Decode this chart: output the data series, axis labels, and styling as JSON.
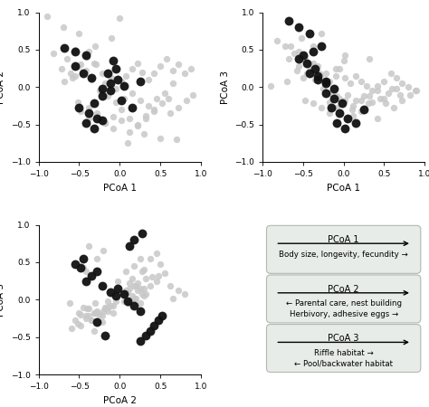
{
  "background_color": "#ffffff",
  "scatter_gray_color": "#c8c8c8",
  "scatter_black_color": "#111111",
  "gray_alpha": 0.85,
  "gray_size": 28,
  "black_size": 50,
  "axis_label_fontsize": 7.5,
  "tick_fontsize": 6.5,
  "legend_box_facecolor": "#e8ece8",
  "legend_box_edgecolor": "#b0b8b0",
  "plots": [
    {
      "xlabel": "PCoA 1",
      "ylabel": "PCoA 2",
      "xlim": [
        -1.0,
        1.0
      ],
      "ylim": [
        -1.0,
        1.0
      ]
    },
    {
      "xlabel": "PCoA 1",
      "ylabel": "PCoA 3",
      "xlim": [
        -1.0,
        1.0
      ],
      "ylim": [
        -1.0,
        1.0
      ]
    },
    {
      "xlabel": "PCoA 2",
      "ylabel": "PCoA 3",
      "xlim": [
        -1.0,
        1.0
      ],
      "ylim": [
        -1.0,
        1.0
      ]
    }
  ],
  "legend_panels": [
    {
      "title": "PCoA 1",
      "lines": [
        "Body size, longevity, fecundity →"
      ]
    },
    {
      "title": "PCoA 2",
      "lines": [
        "← Parental care, nest building",
        "Herbivory, adhesive eggs →"
      ]
    },
    {
      "title": "PCoA 3",
      "lines": [
        "Riffle habitat →",
        "← Pool/backwater habitat"
      ]
    }
  ],
  "gray_x1": [
    -0.82,
    -0.65,
    -0.55,
    -0.48,
    -0.38,
    -0.72,
    -0.61,
    -0.5,
    -0.41,
    -0.58,
    -0.45,
    -0.32,
    -0.68,
    -0.55,
    -0.42,
    -0.29,
    -0.35,
    -0.22,
    -0.18,
    -0.1,
    -0.05,
    0.02,
    0.08,
    0.15,
    0.22,
    0.28,
    0.35,
    0.42,
    0.5,
    0.58,
    0.65,
    0.72,
    0.8,
    0.88,
    -0.25,
    -0.15,
    -0.05,
    0.05,
    0.15,
    0.25,
    0.35,
    0.45,
    0.55,
    0.65,
    -0.48,
    -0.38,
    -0.28,
    -0.18,
    -0.08,
    0.02,
    0.12,
    0.22,
    0.32,
    0.42,
    0.52,
    0.62,
    0.72,
    0.82,
    -0.52,
    -0.38,
    -0.28,
    -0.18,
    -0.08,
    0.02,
    0.12,
    0.22,
    0.32,
    0.42,
    0.0,
    0.1,
    -0.1,
    0.3,
    -0.3,
    0.5,
    -0.5,
    0.7,
    -0.7,
    0.9,
    -0.9,
    0.6
  ],
  "gray_y1": [
    0.45,
    0.38,
    0.5,
    0.3,
    0.48,
    0.25,
    0.18,
    0.28,
    0.4,
    0.12,
    0.2,
    0.32,
    0.08,
    0.15,
    0.22,
    0.3,
    0.1,
    0.18,
    0.05,
    0.12,
    -0.02,
    0.08,
    0.15,
    0.25,
    0.32,
    0.2,
    0.1,
    0.18,
    0.28,
    0.38,
    0.22,
    0.3,
    0.18,
    0.25,
    -0.05,
    -0.12,
    -0.2,
    -0.15,
    -0.08,
    -0.18,
    -0.25,
    -0.15,
    -0.08,
    0.05,
    -0.32,
    -0.42,
    -0.35,
    -0.48,
    -0.4,
    -0.3,
    -0.42,
    -0.5,
    -0.38,
    -0.3,
    -0.22,
    -0.35,
    -0.28,
    -0.18,
    -0.2,
    -0.28,
    -0.38,
    -0.48,
    -0.55,
    -0.45,
    -0.6,
    -0.52,
    -0.42,
    -0.32,
    0.92,
    -0.75,
    0.65,
    -0.62,
    0.55,
    -0.68,
    0.72,
    -0.7,
    0.8,
    -0.1,
    0.95,
    -0.15
  ],
  "black_x1": [
    -0.68,
    -0.55,
    -0.42,
    -0.55,
    -0.45,
    -0.35,
    -0.5,
    -0.38,
    -0.28,
    -0.42,
    -0.32,
    -0.22,
    -0.32,
    -0.22,
    -0.12,
    -0.22,
    -0.12,
    -0.02,
    -0.15,
    -0.05,
    0.05,
    -0.08,
    0.02,
    0.15,
    0.25
  ],
  "black_y1": [
    0.52,
    0.48,
    0.42,
    0.28,
    0.18,
    0.12,
    -0.28,
    -0.35,
    -0.42,
    -0.48,
    -0.55,
    -0.45,
    -0.22,
    -0.12,
    -0.05,
    -0.02,
    0.05,
    0.1,
    0.18,
    0.25,
    0.02,
    0.35,
    -0.18,
    -0.28,
    0.08
  ],
  "gray_x2": [
    -0.82,
    -0.65,
    -0.55,
    -0.48,
    -0.38,
    -0.72,
    -0.61,
    -0.5,
    -0.41,
    -0.58,
    -0.45,
    -0.32,
    -0.68,
    -0.55,
    -0.42,
    -0.29,
    -0.35,
    -0.22,
    -0.18,
    -0.1,
    -0.05,
    0.02,
    0.08,
    0.15,
    0.22,
    0.28,
    0.35,
    0.42,
    0.5,
    0.58,
    0.65,
    0.72,
    0.8,
    0.88,
    -0.25,
    -0.15,
    -0.05,
    0.05,
    0.15,
    0.25,
    0.35,
    0.45,
    0.55,
    0.65,
    -0.48,
    -0.38,
    -0.28,
    -0.18,
    -0.08,
    0.02,
    0.12,
    0.22,
    0.32,
    0.42,
    0.52,
    0.62,
    0.72,
    0.82,
    -0.52,
    -0.38,
    -0.28,
    -0.18,
    -0.08,
    0.02,
    0.12,
    0.22,
    0.32,
    0.42,
    0.0,
    0.1,
    -0.1,
    0.3,
    -0.3,
    0.5,
    -0.5,
    0.7,
    -0.7,
    0.9,
    -0.9,
    0.6
  ],
  "gray_y2": [
    0.62,
    0.55,
    0.48,
    0.4,
    0.32,
    0.55,
    0.45,
    0.38,
    0.3,
    0.22,
    0.18,
    0.28,
    0.38,
    0.28,
    0.22,
    0.15,
    0.1,
    0.18,
    0.08,
    0.15,
    0.25,
    0.12,
    0.05,
    0.15,
    0.08,
    0.02,
    -0.05,
    0.02,
    0.08,
    0.18,
    0.12,
    0.05,
    0.0,
    -0.05,
    -0.02,
    -0.08,
    -0.15,
    -0.1,
    -0.18,
    -0.12,
    -0.2,
    -0.15,
    -0.08,
    -0.02,
    -0.18,
    -0.22,
    -0.28,
    -0.2,
    -0.12,
    -0.18,
    -0.25,
    -0.18,
    -0.12,
    -0.05,
    -0.22,
    -0.28,
    -0.18,
    -0.1,
    0.65,
    0.55,
    0.72,
    -0.35,
    -0.28,
    0.42,
    -0.38,
    -0.32,
    0.38,
    -0.42,
    0.35,
    -0.3,
    0.25,
    -0.22,
    0.18,
    -0.15,
    0.12,
    -0.1,
    0.08,
    -0.05,
    0.02,
    -0.02
  ],
  "black_x2": [
    -0.68,
    -0.55,
    -0.42,
    -0.55,
    -0.45,
    -0.35,
    -0.5,
    -0.38,
    -0.28,
    -0.42,
    -0.32,
    -0.22,
    -0.32,
    -0.22,
    -0.12,
    -0.22,
    -0.12,
    -0.02,
    -0.15,
    -0.05,
    0.05,
    -0.08,
    0.02,
    0.15,
    0.25
  ],
  "black_y2": [
    0.88,
    0.8,
    0.72,
    0.38,
    0.32,
    0.25,
    0.42,
    0.48,
    0.55,
    0.18,
    0.1,
    0.05,
    0.15,
    0.08,
    -0.02,
    -0.08,
    -0.15,
    -0.22,
    -0.28,
    -0.35,
    -0.42,
    -0.48,
    -0.55,
    -0.48,
    -0.3
  ],
  "gray_x3": [
    0.45,
    0.38,
    0.5,
    0.3,
    0.48,
    0.25,
    0.18,
    0.28,
    0.4,
    0.12,
    0.2,
    0.32,
    0.08,
    0.15,
    0.22,
    0.3,
    0.1,
    0.18,
    0.05,
    0.12,
    -0.02,
    0.08,
    0.15,
    0.25,
    0.32,
    0.2,
    0.1,
    0.18,
    0.28,
    0.38,
    0.22,
    0.3,
    0.18,
    0.25,
    -0.05,
    -0.12,
    -0.2,
    -0.15,
    -0.08,
    -0.18,
    -0.25,
    -0.15,
    -0.08,
    0.05,
    -0.32,
    -0.42,
    -0.35,
    -0.48,
    -0.4,
    -0.3,
    -0.42,
    -0.5,
    -0.38,
    -0.3,
    -0.22,
    -0.35,
    -0.28,
    -0.18,
    -0.2,
    -0.28,
    -0.38,
    -0.48,
    -0.55,
    -0.45,
    -0.6,
    -0.52,
    -0.42,
    -0.32,
    0.55,
    -0.22,
    0.45,
    -0.38,
    0.62,
    -0.28,
    0.72,
    -0.45,
    0.8,
    -0.62,
    0.65,
    -0.15
  ],
  "gray_y3": [
    0.62,
    0.55,
    0.48,
    0.4,
    0.32,
    0.55,
    0.45,
    0.38,
    0.3,
    0.22,
    0.18,
    0.28,
    0.38,
    0.28,
    0.22,
    0.15,
    0.1,
    0.18,
    0.08,
    0.15,
    0.25,
    0.12,
    0.05,
    0.15,
    0.08,
    0.02,
    -0.05,
    0.02,
    0.08,
    0.18,
    0.12,
    0.05,
    0.0,
    -0.05,
    -0.02,
    -0.08,
    -0.15,
    -0.1,
    -0.18,
    -0.12,
    -0.2,
    -0.15,
    -0.08,
    -0.02,
    -0.18,
    -0.22,
    -0.28,
    -0.2,
    -0.12,
    -0.18,
    -0.25,
    -0.18,
    -0.12,
    -0.05,
    -0.22,
    -0.28,
    -0.18,
    -0.1,
    0.65,
    0.55,
    0.72,
    -0.35,
    -0.28,
    0.42,
    -0.38,
    -0.32,
    0.38,
    -0.42,
    0.35,
    -0.3,
    0.25,
    -0.22,
    0.18,
    -0.15,
    0.12,
    -0.1,
    0.08,
    -0.05,
    0.02,
    -0.02
  ],
  "black_x3": [
    0.28,
    0.18,
    0.12,
    -0.28,
    -0.35,
    -0.42,
    -0.48,
    -0.55,
    -0.45,
    -0.22,
    -0.12,
    -0.05,
    -0.02,
    0.05,
    0.1,
    0.18,
    0.25,
    0.52,
    0.48,
    0.42,
    0.38,
    0.32,
    0.25,
    -0.18,
    -0.28
  ],
  "black_y3": [
    0.88,
    0.8,
    0.72,
    0.38,
    0.32,
    0.25,
    0.42,
    0.48,
    0.55,
    0.18,
    0.1,
    0.05,
    0.15,
    0.08,
    -0.02,
    -0.08,
    -0.15,
    -0.22,
    -0.28,
    -0.35,
    -0.42,
    -0.48,
    -0.55,
    -0.48,
    -0.3
  ]
}
